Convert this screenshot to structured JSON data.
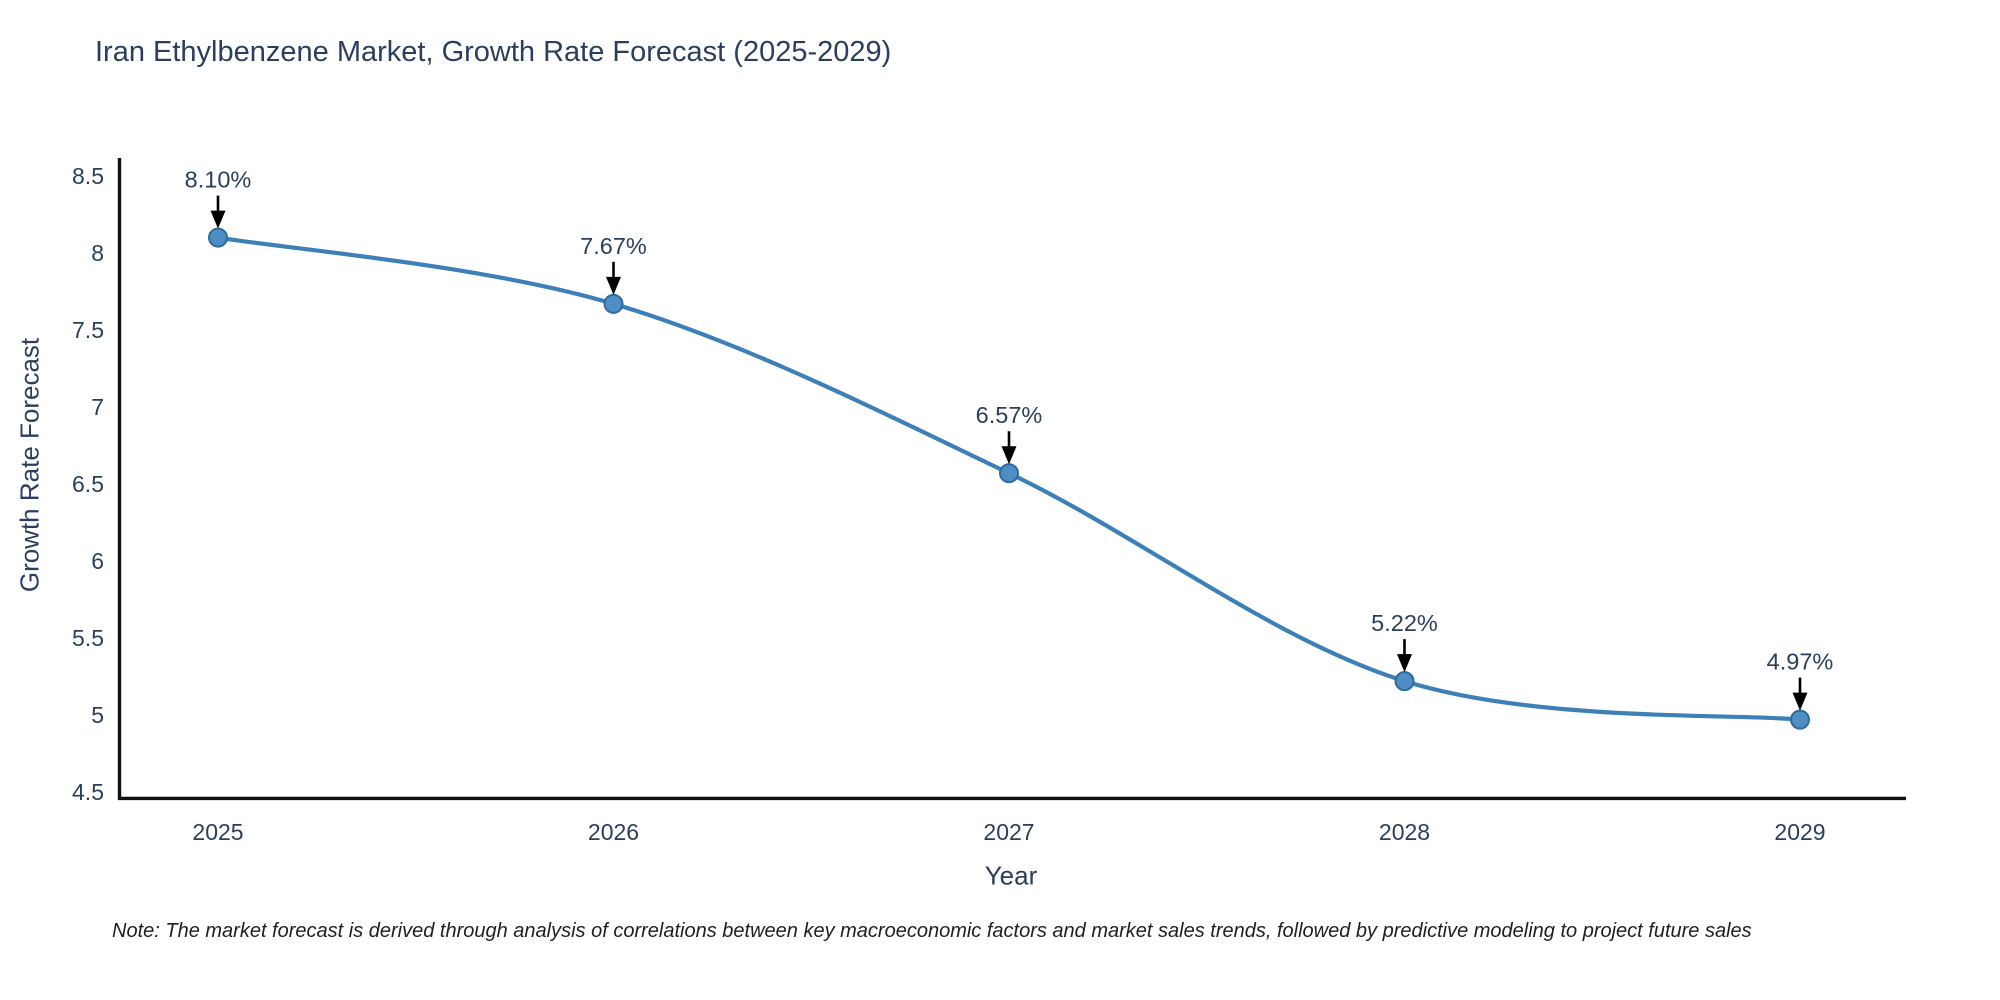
{
  "chart": {
    "title": "Iran Ethylbenzene Market, Growth Rate Forecast (2025-2029)",
    "xlabel": "Year",
    "ylabel": "Growth Rate Forecast",
    "note": "Note: The market forecast is derived through analysis of correlations between key macroeconomic factors and market sales trends, followed by predictive modeling to project future sales"
  },
  "chart_data": {
    "type": "line",
    "title": "Iran Ethylbenzene Market, Growth Rate Forecast (2025-2029)",
    "xlabel": "Year",
    "ylabel": "Growth Rate Forecast",
    "categories": [
      2025,
      2026,
      2027,
      2028,
      2029
    ],
    "values": [
      8.1,
      7.67,
      6.57,
      5.22,
      4.97
    ],
    "point_labels": [
      "8.10%",
      "7.67%",
      "6.57%",
      "5.22%",
      "4.97%"
    ],
    "ylim": [
      4.5,
      8.5
    ],
    "yticks": [
      4.5,
      5,
      5.5,
      6,
      6.5,
      7,
      7.5,
      8,
      8.5
    ],
    "ytick_labels": [
      "4.5",
      "5",
      "5.5",
      "6",
      "6.5",
      "7",
      "7.5",
      "8",
      "8.5"
    ],
    "line_shape": "spline",
    "grid": false,
    "legend_position": "none",
    "colors": {
      "line": "#3d80b8",
      "marker_fill": "#4e8ec4",
      "marker_edge": "#2f6a9e",
      "axis_line": "#111111",
      "tick_text": "#2a3f5f",
      "annotation_text": "#2a3f5f",
      "annotation_arrow": "#000000",
      "background": "#ffffff"
    }
  }
}
